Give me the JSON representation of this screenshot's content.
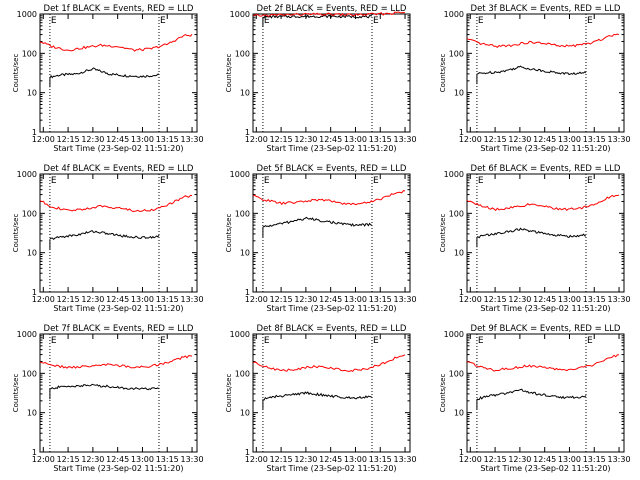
{
  "colors": {
    "events": "#000000",
    "lld": "#ff0000",
    "axis": "#000000",
    "background": "#ffffff"
  },
  "chart_data": [
    {
      "type": "line",
      "title": "Det 1f BLACK = Events, RED = LLD",
      "xlabel": "Start Time (23-Sep-02 11:51:20)",
      "ylabel": "Counts/sec",
      "xlim": [
        "11:58",
        "13:33"
      ],
      "ylim": [
        1,
        1000
      ],
      "yscale": "log",
      "xticks": [
        "12:00",
        "12:15",
        "12:30",
        "12:45",
        "13:00",
        "13:15",
        "13:30"
      ],
      "yticks": [
        "1",
        "10",
        "100",
        "1000"
      ],
      "marker_label": "E",
      "vlines": [
        "12:04",
        "13:10"
      ],
      "series": [
        {
          "name": "Events",
          "color": "#000000",
          "x": [
            "12:04",
            "12:10",
            "12:20",
            "12:30",
            "12:40",
            "12:50",
            "13:00",
            "13:10"
          ],
          "y": [
            25,
            28,
            30,
            40,
            30,
            27,
            26,
            28
          ]
        },
        {
          "name": "LLD",
          "color": "#ff0000",
          "x": [
            "11:58",
            "12:05",
            "12:15",
            "12:25",
            "12:35",
            "12:45",
            "12:55",
            "13:05",
            "13:15",
            "13:25",
            "13:30"
          ],
          "y": [
            200,
            150,
            120,
            140,
            160,
            150,
            120,
            130,
            170,
            280,
            290
          ]
        }
      ]
    },
    {
      "type": "line",
      "title": "Det 2f BLACK = Events, RED = LLD",
      "xlabel": "Start Time (23-Sep-02 11:51:20)",
      "ylabel": "Counts/sec",
      "xlim": [
        "11:58",
        "13:33"
      ],
      "ylim": [
        1,
        1000
      ],
      "yscale": "log",
      "xticks": [
        "12:00",
        "12:15",
        "12:30",
        "12:45",
        "13:00",
        "13:15",
        "13:30"
      ],
      "yticks": [
        "1",
        "10",
        "100",
        "1000"
      ],
      "marker_label": "E",
      "vlines": [
        "12:04",
        "13:10"
      ],
      "series": [
        {
          "name": "Events",
          "color": "#000000",
          "x": [
            "12:04",
            "12:20",
            "12:40",
            "13:00",
            "13:10"
          ],
          "y": [
            850,
            860,
            870,
            860,
            850
          ]
        },
        {
          "name": "LLD",
          "color": "#ff0000",
          "x": [
            "11:58",
            "12:15",
            "12:30",
            "12:45",
            "13:00",
            "13:15",
            "13:30"
          ],
          "y": [
            900,
            950,
            980,
            980,
            950,
            1000,
            1100
          ]
        }
      ]
    },
    {
      "type": "line",
      "title": "Det 3f BLACK = Events, RED = LLD",
      "xlabel": "Start Time (23-Sep-02 11:51:20)",
      "ylabel": "Counts/sec",
      "xlim": [
        "11:58",
        "13:33"
      ],
      "ylim": [
        1,
        1000
      ],
      "yscale": "log",
      "xticks": [
        "12:00",
        "12:15",
        "12:30",
        "12:45",
        "13:00",
        "13:15",
        "13:30"
      ],
      "yticks": [
        "1",
        "10",
        "100",
        "1000"
      ],
      "marker_label": "E",
      "vlines": [
        "12:04",
        "13:10"
      ],
      "series": [
        {
          "name": "Events",
          "color": "#000000",
          "x": [
            "12:04",
            "12:10",
            "12:20",
            "12:30",
            "12:40",
            "12:50",
            "13:00",
            "13:10"
          ],
          "y": [
            30,
            32,
            35,
            45,
            38,
            33,
            30,
            32
          ]
        },
        {
          "name": "LLD",
          "color": "#ff0000",
          "x": [
            "11:58",
            "12:05",
            "12:15",
            "12:25",
            "12:35",
            "12:45",
            "12:55",
            "13:05",
            "13:15",
            "13:25",
            "13:30"
          ],
          "y": [
            230,
            180,
            150,
            160,
            190,
            180,
            150,
            160,
            190,
            290,
            300
          ]
        }
      ]
    },
    {
      "type": "line",
      "title": "Det 4f BLACK = Events, RED = LLD",
      "xlabel": "Start Time (23-Sep-02 11:51:20)",
      "ylabel": "Counts/sec",
      "xlim": [
        "11:58",
        "13:33"
      ],
      "ylim": [
        1,
        1000
      ],
      "yscale": "log",
      "xticks": [
        "12:00",
        "12:15",
        "12:30",
        "12:45",
        "13:00",
        "13:15",
        "13:30"
      ],
      "yticks": [
        "1",
        "10",
        "100",
        "1000"
      ],
      "marker_label": "E",
      "vlines": [
        "12:04",
        "13:10"
      ],
      "series": [
        {
          "name": "Events",
          "color": "#000000",
          "x": [
            "12:04",
            "12:10",
            "12:20",
            "12:30",
            "12:40",
            "12:50",
            "13:00",
            "13:10"
          ],
          "y": [
            22,
            25,
            28,
            35,
            30,
            26,
            24,
            26
          ]
        },
        {
          "name": "LLD",
          "color": "#ff0000",
          "x": [
            "11:58",
            "12:05",
            "12:15",
            "12:25",
            "12:35",
            "12:45",
            "12:55",
            "13:05",
            "13:15",
            "13:25",
            "13:30"
          ],
          "y": [
            210,
            150,
            115,
            130,
            150,
            140,
            115,
            120,
            160,
            260,
            280
          ]
        }
      ]
    },
    {
      "type": "line",
      "title": "Det 5f BLACK = Events, RED = LLD",
      "xlabel": "Start Time (23-Sep-02 11:51:20)",
      "ylabel": "Counts/sec",
      "xlim": [
        "11:58",
        "13:33"
      ],
      "ylim": [
        1,
        1000
      ],
      "yscale": "log",
      "xticks": [
        "12:00",
        "12:15",
        "12:30",
        "12:45",
        "13:00",
        "13:15",
        "13:30"
      ],
      "yticks": [
        "1",
        "10",
        "100",
        "1000"
      ],
      "marker_label": "E",
      "vlines": [
        "12:04",
        "13:10"
      ],
      "series": [
        {
          "name": "Events",
          "color": "#000000",
          "x": [
            "12:04",
            "12:10",
            "12:20",
            "12:30",
            "12:40",
            "12:50",
            "13:00",
            "13:10"
          ],
          "y": [
            45,
            50,
            60,
            75,
            65,
            55,
            50,
            52
          ]
        },
        {
          "name": "LLD",
          "color": "#ff0000",
          "x": [
            "11:58",
            "12:05",
            "12:15",
            "12:25",
            "12:35",
            "12:45",
            "12:55",
            "13:05",
            "13:15",
            "13:25",
            "13:30"
          ],
          "y": [
            280,
            220,
            180,
            190,
            220,
            210,
            170,
            180,
            230,
            340,
            360
          ]
        }
      ]
    },
    {
      "type": "line",
      "title": "Det 6f BLACK = Events, RED = LLD",
      "xlabel": "Start Time (23-Sep-02 11:51:20)",
      "ylabel": "Counts/sec",
      "xlim": [
        "11:58",
        "13:33"
      ],
      "ylim": [
        1,
        1000
      ],
      "yscale": "log",
      "xticks": [
        "12:00",
        "12:15",
        "12:30",
        "12:45",
        "13:00",
        "13:15",
        "13:30"
      ],
      "yticks": [
        "1",
        "10",
        "100",
        "1000"
      ],
      "marker_label": "E",
      "vlines": [
        "12:04",
        "13:10"
      ],
      "series": [
        {
          "name": "Events",
          "color": "#000000",
          "x": [
            "12:04",
            "12:10",
            "12:20",
            "12:30",
            "12:40",
            "12:50",
            "13:00",
            "13:10"
          ],
          "y": [
            25,
            28,
            32,
            40,
            33,
            28,
            26,
            28
          ]
        },
        {
          "name": "LLD",
          "color": "#ff0000",
          "x": [
            "11:58",
            "12:05",
            "12:15",
            "12:25",
            "12:35",
            "12:45",
            "12:55",
            "13:05",
            "13:15",
            "13:25",
            "13:30"
          ],
          "y": [
            220,
            160,
            125,
            140,
            165,
            150,
            125,
            130,
            170,
            270,
            290
          ]
        }
      ]
    },
    {
      "type": "line",
      "title": "Det 7f BLACK = Events, RED = LLD",
      "xlabel": "Start Time (23-Sep-02 11:51:20)",
      "ylabel": "Counts/sec",
      "xlim": [
        "11:58",
        "13:33"
      ],
      "ylim": [
        1,
        1000
      ],
      "yscale": "log",
      "xticks": [
        "12:00",
        "12:15",
        "12:30",
        "12:45",
        "13:00",
        "13:15",
        "13:30"
      ],
      "yticks": [
        "1",
        "10",
        "100",
        "1000"
      ],
      "marker_label": "E",
      "vlines": [
        "12:04",
        "13:10"
      ],
      "series": [
        {
          "name": "Events",
          "color": "#000000",
          "x": [
            "12:04",
            "12:10",
            "12:20",
            "12:30",
            "12:40",
            "12:50",
            "13:00",
            "13:10"
          ],
          "y": [
            40,
            45,
            48,
            50,
            46,
            42,
            40,
            42
          ]
        },
        {
          "name": "LLD",
          "color": "#ff0000",
          "x": [
            "11:58",
            "12:05",
            "12:15",
            "12:25",
            "12:35",
            "12:45",
            "12:55",
            "13:05",
            "13:15",
            "13:25",
            "13:30"
          ],
          "y": [
            200,
            160,
            140,
            150,
            165,
            160,
            140,
            150,
            190,
            260,
            280
          ]
        }
      ]
    },
    {
      "type": "line",
      "title": "Det 8f BLACK = Events, RED = LLD",
      "xlabel": "Start Time (23-Sep-02 11:51:20)",
      "ylabel": "Counts/sec",
      "xlim": [
        "11:58",
        "13:33"
      ],
      "ylim": [
        1,
        1000
      ],
      "yscale": "log",
      "xticks": [
        "12:00",
        "12:15",
        "12:30",
        "12:45",
        "13:00",
        "13:15",
        "13:30"
      ],
      "yticks": [
        "1",
        "10",
        "100",
        "1000"
      ],
      "marker_label": "E",
      "vlines": [
        "12:04",
        "13:10"
      ],
      "series": [
        {
          "name": "Events",
          "color": "#000000",
          "x": [
            "12:04",
            "12:10",
            "12:20",
            "12:30",
            "12:40",
            "12:50",
            "13:00",
            "13:10"
          ],
          "y": [
            22,
            25,
            28,
            32,
            28,
            25,
            24,
            26
          ]
        },
        {
          "name": "LLD",
          "color": "#ff0000",
          "x": [
            "11:58",
            "12:05",
            "12:15",
            "12:25",
            "12:35",
            "12:45",
            "12:55",
            "13:05",
            "13:15",
            "13:25",
            "13:30"
          ],
          "y": [
            200,
            150,
            115,
            130,
            150,
            140,
            115,
            125,
            165,
            260,
            280
          ]
        }
      ]
    },
    {
      "type": "line",
      "title": "Det 9f BLACK = Events, RED = LLD",
      "xlabel": "Start Time (23-Sep-02 11:51:20)",
      "ylabel": "Counts/sec",
      "xlim": [
        "11:58",
        "13:33"
      ],
      "ylim": [
        1,
        1000
      ],
      "yscale": "log",
      "xticks": [
        "12:00",
        "12:15",
        "12:30",
        "12:45",
        "13:00",
        "13:15",
        "13:30"
      ],
      "yticks": [
        "1",
        "10",
        "100",
        "1000"
      ],
      "marker_label": "E",
      "vlines": [
        "12:04",
        "13:10"
      ],
      "series": [
        {
          "name": "Events",
          "color": "#000000",
          "x": [
            "12:04",
            "12:10",
            "12:20",
            "12:30",
            "12:40",
            "12:50",
            "13:00",
            "13:10"
          ],
          "y": [
            22,
            26,
            30,
            38,
            30,
            26,
            24,
            26
          ]
        },
        {
          "name": "LLD",
          "color": "#ff0000",
          "x": [
            "11:58",
            "12:05",
            "12:15",
            "12:25",
            "12:35",
            "12:45",
            "12:55",
            "13:05",
            "13:15",
            "13:25",
            "13:30"
          ],
          "y": [
            210,
            150,
            120,
            135,
            155,
            145,
            120,
            130,
            165,
            260,
            280
          ]
        }
      ]
    }
  ]
}
